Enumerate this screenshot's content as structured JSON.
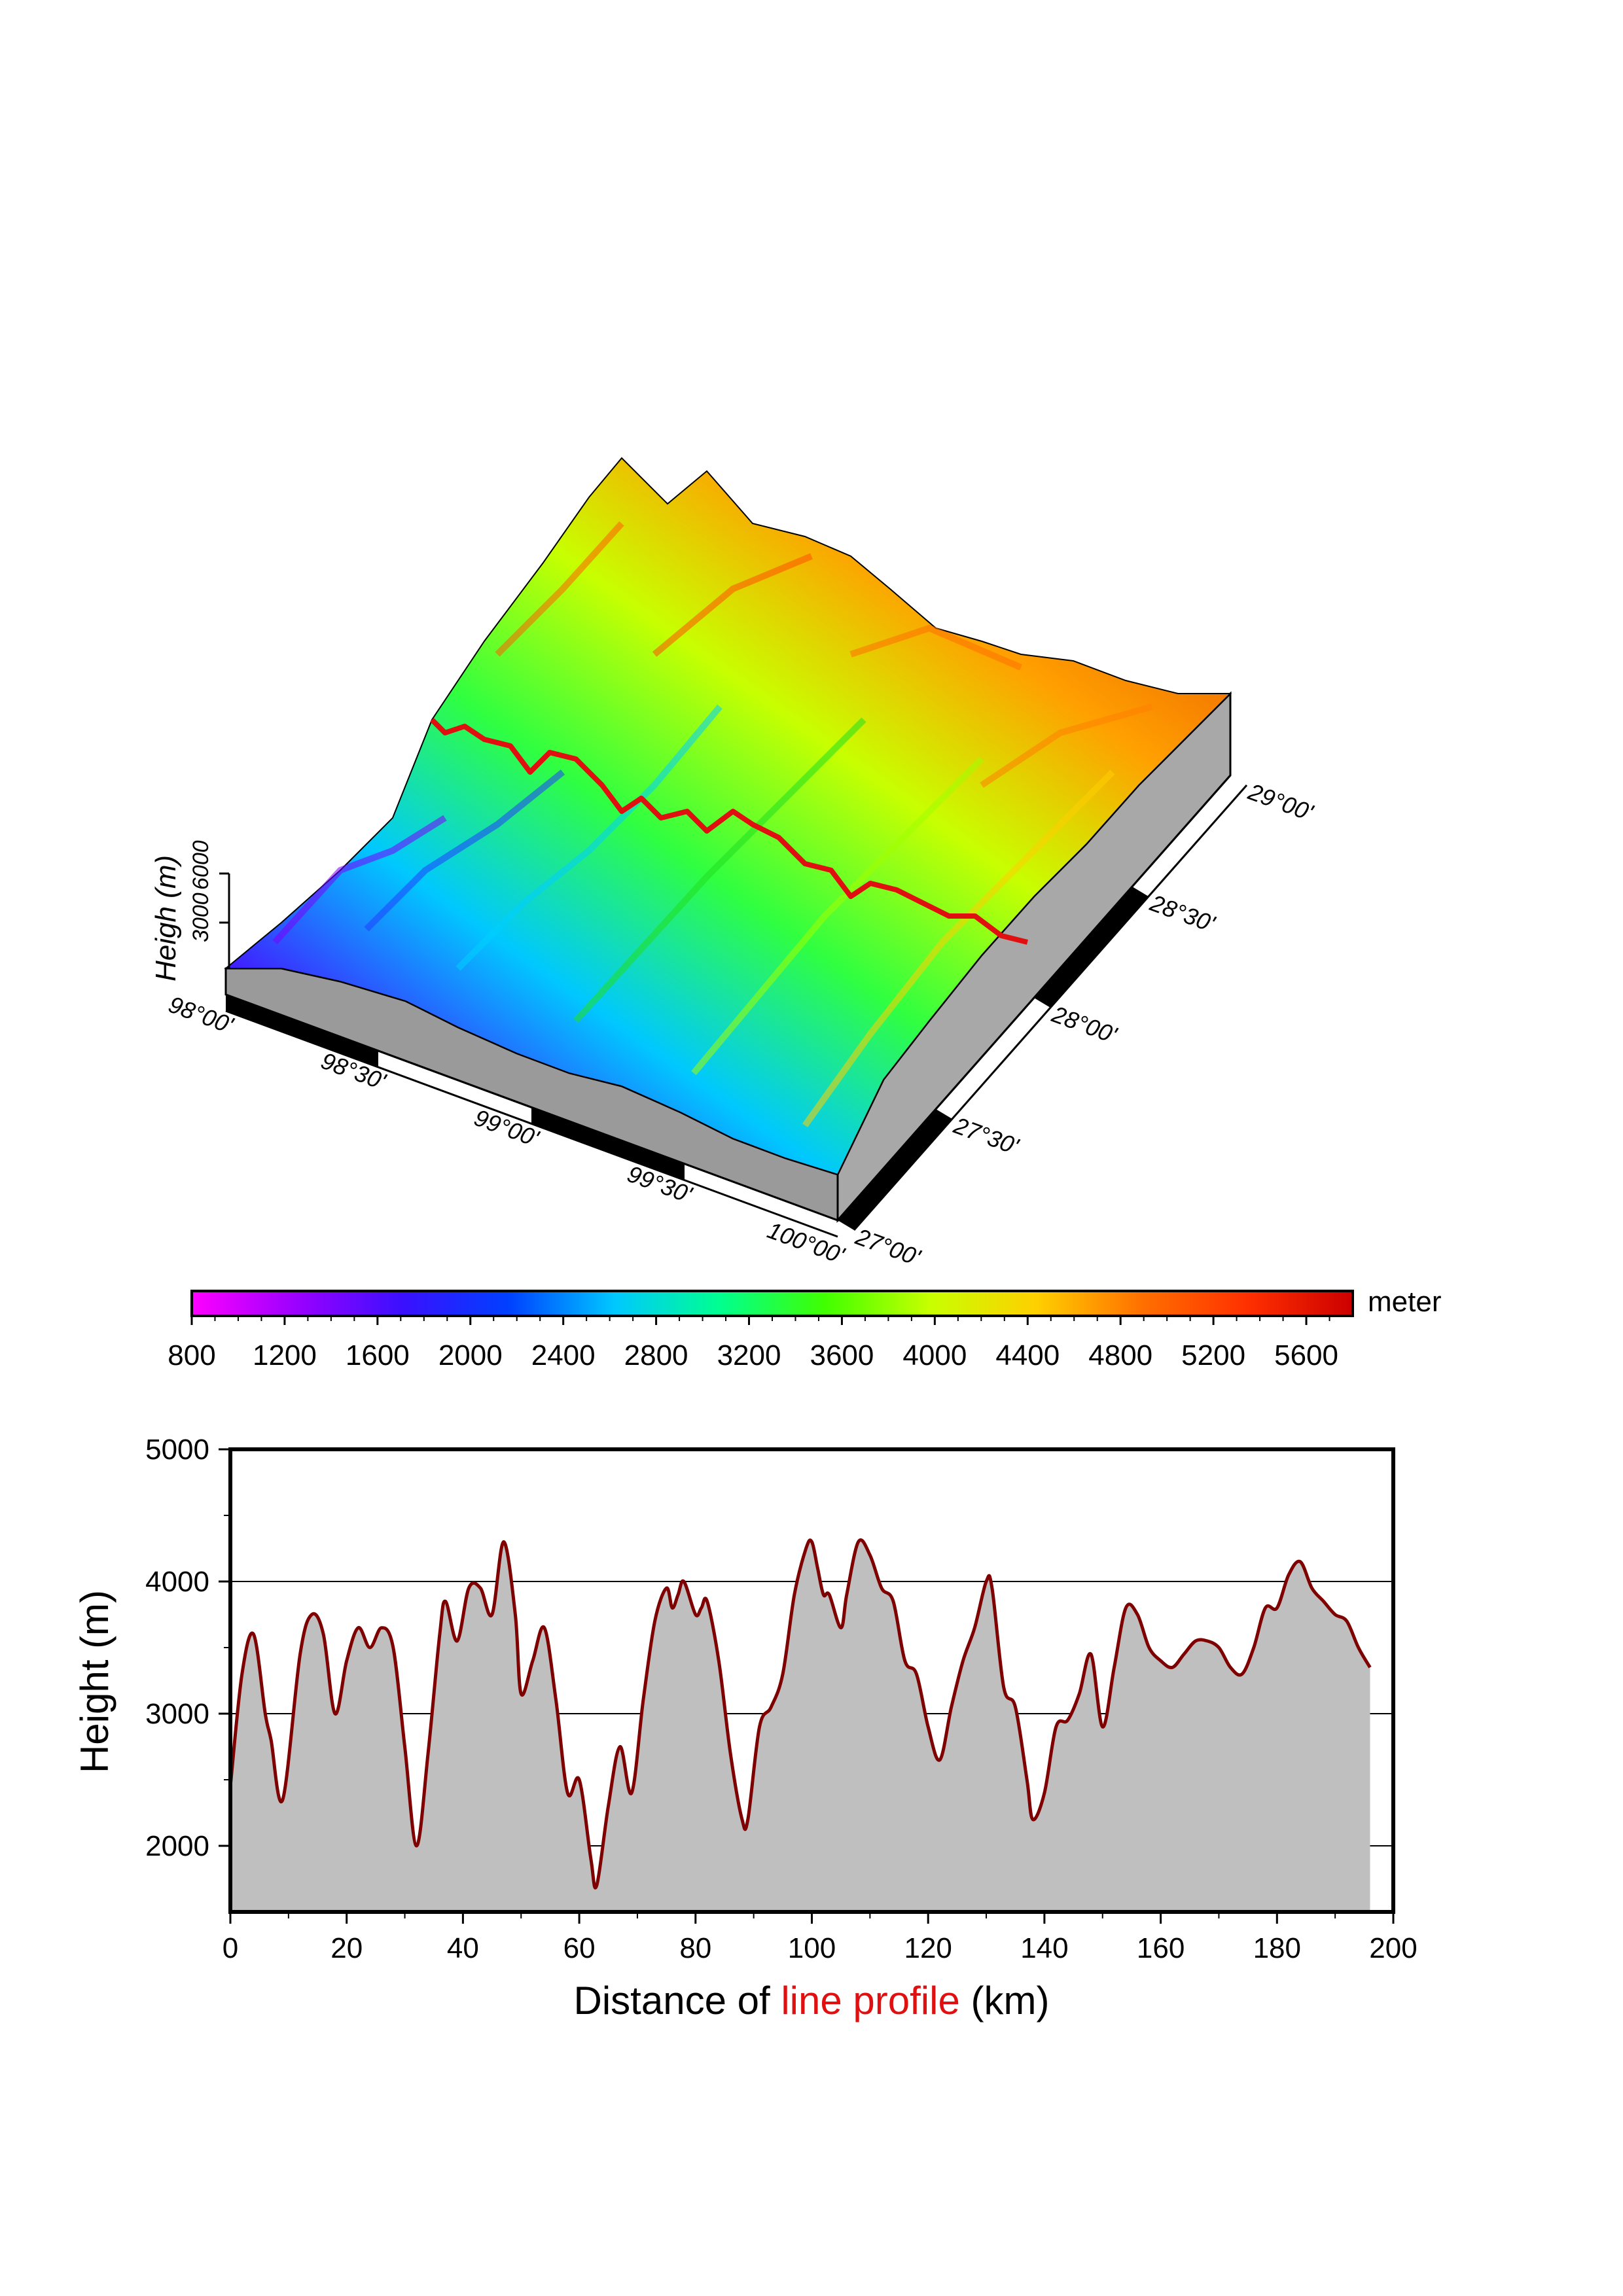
{
  "chart_data": [
    {
      "type": "surface",
      "zlabel": "Heigh (m)",
      "z_ticks": [
        "3000",
        "6000"
      ],
      "x_ticks": [
        "98°00'",
        "98°30'",
        "99°00'",
        "99°30'",
        "100°00'"
      ],
      "y_ticks": [
        "27°00'",
        "27°30'",
        "28°00'",
        "28°30'",
        "29°00'"
      ],
      "xlim": [
        "98°00'",
        "100°00'"
      ],
      "ylim": [
        "27°00'",
        "29°00'"
      ],
      "colormap": "rainbow",
      "profile_line_color": "#e01010",
      "note_profile": "red line traces the profile shown below"
    },
    {
      "type": "colorbar",
      "unit_label": "meter",
      "ticks": [
        "800",
        "1200",
        "1600",
        "2000",
        "2400",
        "2800",
        "3200",
        "3600",
        "4000",
        "4400",
        "4800",
        "5200",
        "5600"
      ],
      "range": [
        800,
        5800
      ],
      "stops": [
        "#ff00ff",
        "#9a00ff",
        "#3a10ff",
        "#0040ff",
        "#00c8ff",
        "#00ff90",
        "#40ff00",
        "#c8ff00",
        "#ffd000",
        "#ff7000",
        "#ff3000",
        "#cc0000"
      ]
    },
    {
      "type": "area",
      "xlabel_prefix": "Distance of ",
      "xlabel_highlight": "line profile",
      "xlabel_suffix": " (km)",
      "ylabel": "Height (m)",
      "xlim": [
        0,
        200
      ],
      "ylim": [
        1500,
        5000
      ],
      "x_ticks": [
        "0",
        "20",
        "40",
        "60",
        "80",
        "100",
        "120",
        "140",
        "160",
        "180",
        "200"
      ],
      "y_ticks": [
        "2000",
        "3000",
        "4000",
        "5000"
      ],
      "grid_y": [
        2000,
        3000,
        4000
      ],
      "fill_color": "#bfbfbf",
      "line_color": "#7f0000",
      "highlight_color": "#e01010",
      "x": [
        0,
        2,
        4,
        6,
        7,
        9,
        12,
        14,
        16,
        18,
        20,
        22,
        24,
        26,
        28,
        30,
        32,
        34,
        36,
        37,
        39,
        41,
        43,
        45,
        47,
        49,
        50,
        52,
        54,
        56,
        58,
        60,
        62,
        63,
        65,
        67,
        69,
        71,
        73,
        75,
        76,
        77,
        78,
        80,
        81,
        82,
        84,
        86,
        88,
        89,
        91,
        93,
        95,
        97,
        99,
        100,
        101,
        102,
        103,
        105,
        106,
        108,
        110,
        112,
        114,
        116,
        118,
        120,
        122,
        124,
        126,
        128,
        130,
        131,
        133,
        135,
        137,
        138,
        140,
        142,
        144,
        146,
        148,
        150,
        152,
        154,
        156,
        158,
        160,
        162,
        164,
        166,
        168,
        170,
        172,
        174,
        176,
        178,
        180,
        182,
        184,
        186,
        188,
        190,
        192,
        194,
        196
      ],
      "values": [
        2450,
        3300,
        3600,
        3000,
        2800,
        2350,
        3450,
        3750,
        3600,
        3000,
        3400,
        3650,
        3500,
        3650,
        3500,
        2750,
        2000,
        2700,
        3600,
        3850,
        3550,
        3950,
        3950,
        3750,
        4300,
        3750,
        3150,
        3400,
        3650,
        3100,
        2400,
        2500,
        1900,
        1700,
        2300,
        2750,
        2400,
        3100,
        3700,
        3950,
        3800,
        3900,
        4000,
        3750,
        3800,
        3850,
        3400,
        2700,
        2200,
        2200,
        2900,
        3050,
        3300,
        3900,
        4250,
        4300,
        4100,
        3900,
        3900,
        3650,
        3900,
        4300,
        4200,
        3950,
        3850,
        3400,
        3300,
        2900,
        2650,
        3050,
        3400,
        3650,
        4000,
        3950,
        3200,
        3050,
        2500,
        2200,
        2400,
        2900,
        2950,
        3150,
        3450,
        2900,
        3350,
        3800,
        3750,
        3500,
        3400,
        3350,
        3450,
        3550,
        3550,
        3500,
        3350,
        3300,
        3500,
        3800,
        3800,
        4050,
        4150,
        3950,
        3850,
        3750,
        3700,
        3500,
        3350
      ]
    }
  ]
}
